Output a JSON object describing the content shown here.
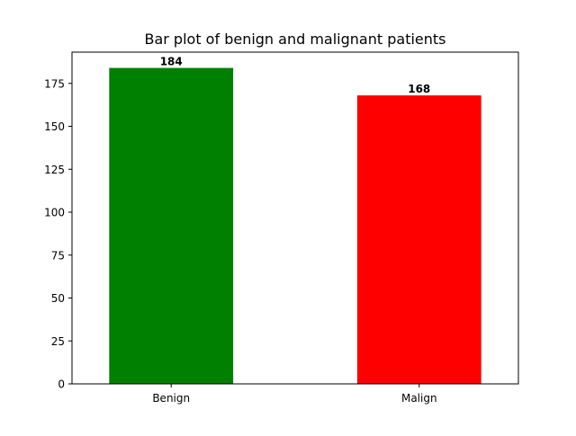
{
  "chart_data": {
    "type": "bar",
    "title": "Bar plot of benign and malignant patients",
    "xlabel": "",
    "ylabel": "",
    "categories": [
      "Benign",
      "Malign"
    ],
    "values": [
      184,
      168
    ],
    "bar_colors": [
      "#008000",
      "#ff0000"
    ],
    "data_labels": [
      "184",
      "168"
    ],
    "yticks": [
      0,
      25,
      50,
      75,
      100,
      125,
      150,
      175
    ],
    "ytick_labels": [
      "0",
      "25",
      "50",
      "75",
      "100",
      "125",
      "150",
      "175"
    ],
    "ylim": [
      0,
      193.2
    ],
    "grid": false,
    "legend": "none"
  }
}
